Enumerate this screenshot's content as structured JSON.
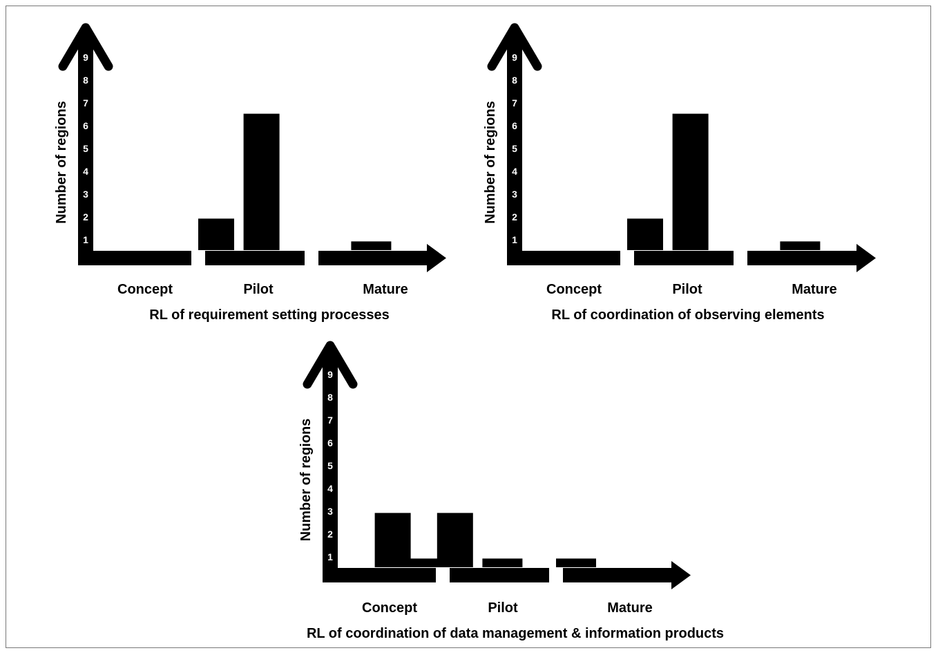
{
  "chart_data": [
    {
      "type": "bar",
      "title": "RL of requirement setting processes",
      "ylabel": "Number of regions",
      "categories": [
        "Concept",
        "Pilot",
        "Mature"
      ],
      "yticks": [
        "1",
        "2",
        "3",
        "4",
        "5",
        "6",
        "7",
        "8",
        "9"
      ],
      "ylim": [
        0,
        9
      ],
      "bars": [
        {
          "position": 2.0,
          "value": 1.2
        },
        {
          "position": 2.4,
          "value": 5.8
        },
        {
          "position": 3.35,
          "value": 0.2
        }
      ]
    },
    {
      "type": "bar",
      "title": "RL of coordination of observing elements",
      "ylabel": "Number of regions",
      "categories": [
        "Concept",
        "Pilot",
        "Mature"
      ],
      "yticks": [
        "1",
        "2",
        "3",
        "4",
        "5",
        "6",
        "7",
        "8",
        "9"
      ],
      "ylim": [
        0,
        9
      ],
      "bars": [
        {
          "position": 2.0,
          "value": 1.2
        },
        {
          "position": 2.4,
          "value": 5.8
        },
        {
          "position": 3.35,
          "value": 0.2
        }
      ]
    },
    {
      "type": "bar",
      "title": "RL of coordination of data management & information products",
      "ylabel": "Number of regions",
      "categories": [
        "Concept",
        "Pilot",
        "Mature"
      ],
      "yticks": [
        "1",
        "2",
        "3",
        "4",
        "5",
        "6",
        "7",
        "8",
        "9"
      ],
      "ylim": [
        0,
        9
      ],
      "bars": [
        {
          "position": 1.4,
          "value": 2.2
        },
        {
          "position": 1.7,
          "value": 0.2
        },
        {
          "position": 1.95,
          "value": 2.2
        },
        {
          "position": 2.35,
          "value": 0.2
        },
        {
          "position": 3.0,
          "value": 0.2
        }
      ]
    }
  ]
}
